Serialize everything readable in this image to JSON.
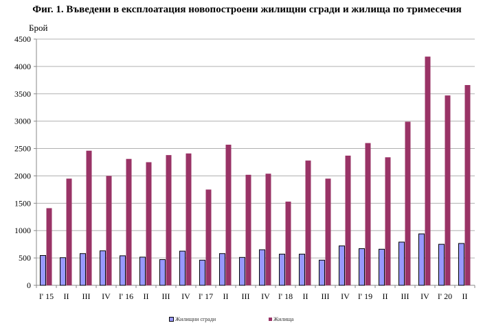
{
  "title": "Фиг. 1. Въведени в експлоатация новопостроени жилищни сгради и жилища по тримесечия",
  "ylabel": "Брой",
  "legend": [
    {
      "label": "Жилищни  сгради",
      "color": "#9999FF"
    },
    {
      "label": "Жилища",
      "color": "#993366"
    }
  ],
  "chart_data": {
    "type": "bar",
    "title": "Фиг. 1. Въведени в експлоатация новопостроени жилищни сгради и жилища по тримесечия",
    "xlabel": "",
    "ylabel": "Брой",
    "ylim": [
      0,
      4500
    ],
    "yticks": [
      0,
      500,
      1000,
      1500,
      2000,
      2500,
      3000,
      3500,
      4000,
      4500
    ],
    "grid": true,
    "legend_position": "bottom",
    "categories": [
      "I' 15",
      "II",
      "III",
      "IV",
      "I' 16",
      "II",
      "III",
      "IV",
      "I' 17",
      "II",
      "III",
      "IV",
      "I' 18",
      "II",
      "III",
      "IV",
      "I' 19",
      "II",
      "III",
      "IV",
      "I' 20",
      "II"
    ],
    "series": [
      {
        "name": "Жилищни  сгради",
        "color": "#9999FF",
        "values": [
          545,
          505,
          580,
          630,
          540,
          515,
          470,
          625,
          460,
          580,
          510,
          650,
          570,
          570,
          460,
          720,
          670,
          660,
          790,
          940,
          750,
          765
        ]
      },
      {
        "name": "Жилища",
        "color": "#993366",
        "values": [
          1410,
          1950,
          2460,
          2000,
          2310,
          2250,
          2380,
          2410,
          1750,
          2570,
          2020,
          2040,
          1530,
          2280,
          1950,
          2370,
          2600,
          2340,
          2990,
          4180,
          3470,
          3660
        ]
      }
    ]
  }
}
